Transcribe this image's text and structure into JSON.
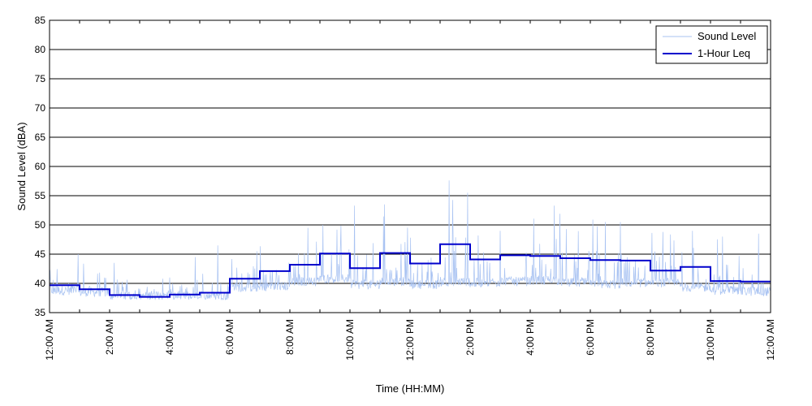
{
  "chart_data": {
    "type": "line",
    "title": "",
    "xlabel": "Time (HH:MM)",
    "ylabel": "Sound Level (dBA)",
    "xlim": [
      0,
      24
    ],
    "ylim": [
      35,
      85
    ],
    "y_ticks": [
      35,
      40,
      45,
      50,
      55,
      60,
      65,
      70,
      75,
      80,
      85
    ],
    "x_ticks": [
      {
        "hour": 0,
        "label": "12:00 AM"
      },
      {
        "hour": 2,
        "label": "2:00 AM"
      },
      {
        "hour": 4,
        "label": "4:00 AM"
      },
      {
        "hour": 6,
        "label": "6:00 AM"
      },
      {
        "hour": 8,
        "label": "8:00 AM"
      },
      {
        "hour": 10,
        "label": "10:00 AM"
      },
      {
        "hour": 12,
        "label": "12:00 PM"
      },
      {
        "hour": 14,
        "label": "2:00 PM"
      },
      {
        "hour": 16,
        "label": "4:00 PM"
      },
      {
        "hour": 18,
        "label": "6:00 PM"
      },
      {
        "hour": 20,
        "label": "8:00 PM"
      },
      {
        "hour": 22,
        "label": "10:00 PM"
      },
      {
        "hour": 24,
        "label": "12:00 AM"
      }
    ],
    "grid": "horizontal",
    "legend_position": "top-right",
    "series": [
      {
        "name": "Sound Level",
        "color": "#a9c3f2",
        "style": "thin",
        "hourly_base": [
          38.5,
          38.2,
          37.6,
          37.6,
          37.5,
          37.6,
          39.0,
          39.2,
          40.0,
          40.5,
          39.5,
          40.0,
          39.5,
          40.0,
          39.8,
          40.0,
          40.2,
          39.8,
          39.5,
          39.8,
          39.8,
          39.0,
          38.5,
          38.3
        ],
        "hourly_range": [
          43,
          45,
          41,
          41,
          42,
          46,
          47,
          48,
          50,
          50,
          53,
          53,
          48,
          57.5,
          50,
          50,
          53,
          50,
          51,
          48,
          49,
          48,
          48.5,
          44
        ],
        "peaks": [
          {
            "hour": 0.95,
            "value": 45.0
          },
          {
            "hour": 2.15,
            "value": 43.5
          },
          {
            "hour": 4.0,
            "value": 41.0
          },
          {
            "hour": 4.85,
            "value": 44.5
          },
          {
            "hour": 5.6,
            "value": 46.5
          },
          {
            "hour": 8.6,
            "value": 49.5
          },
          {
            "hour": 9.1,
            "value": 50.0
          },
          {
            "hour": 10.15,
            "value": 53.3
          },
          {
            "hour": 11.15,
            "value": 53.5
          },
          {
            "hour": 13.3,
            "value": 57.6
          },
          {
            "hour": 15.0,
            "value": 49.0
          },
          {
            "hour": 16.8,
            "value": 53.3
          },
          {
            "hour": 18.5,
            "value": 50.5
          },
          {
            "hour": 19.0,
            "value": 50.5
          },
          {
            "hour": 21.4,
            "value": 49.0
          },
          {
            "hour": 22.4,
            "value": 48.0
          },
          {
            "hour": 23.6,
            "value": 48.5
          }
        ]
      },
      {
        "name": "1-Hour Leq",
        "color": "#0000cc",
        "style": "step",
        "values": [
          39.7,
          39.0,
          38.0,
          37.7,
          38.1,
          38.4,
          40.8,
          42.1,
          43.2,
          45.1,
          42.6,
          45.2,
          43.4,
          46.7,
          44.1,
          44.8,
          44.7,
          44.3,
          44.0,
          43.9,
          42.2,
          42.8,
          40.4,
          40.3
        ]
      }
    ]
  }
}
